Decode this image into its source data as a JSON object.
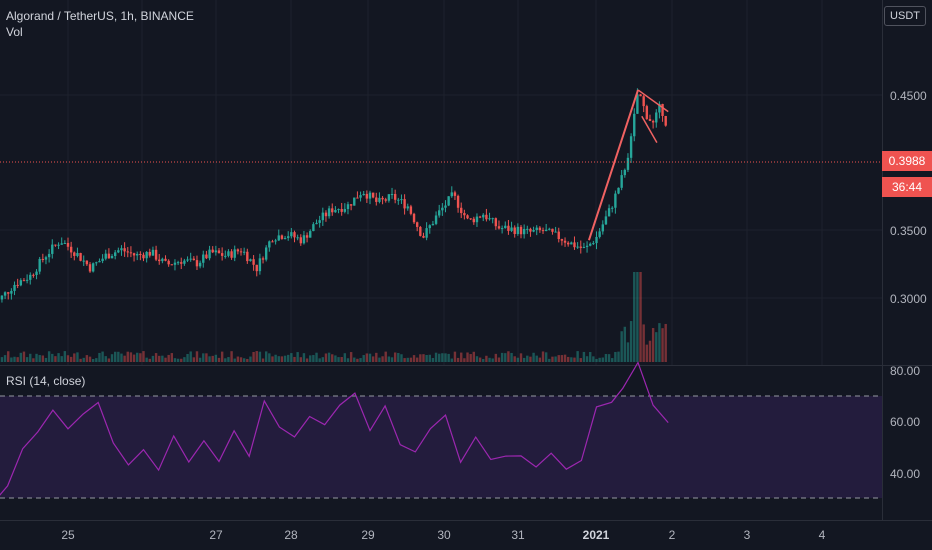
{
  "header": {
    "symbol_line": "Algorand / TetherUS, 1h, BINANCE",
    "vol_label": "Vol",
    "currency": "USDT"
  },
  "rsi": {
    "title": "RSI (14, close)",
    "upper_band": 70,
    "lower_band": 30,
    "axis_labels": [
      "80.00",
      "60.00",
      "40.00"
    ]
  },
  "price_badges": {
    "last_price": "0.3988",
    "countdown": "36:44"
  },
  "colors": {
    "background": "#131722",
    "up": "#26a69a",
    "down": "#ef5350",
    "rsi_line": "#9c27b0",
    "rsi_band": "#2a1f47",
    "drawing": "#f06262"
  },
  "chart_data": {
    "type": "candlestick",
    "price_axis": {
      "labels": [
        "0.4500",
        "0.3500",
        "0.3000"
      ],
      "range": [
        0.27,
        0.465
      ]
    },
    "time_axis": {
      "labels": [
        "25",
        "27",
        "28",
        "29",
        "30",
        "31",
        "2021",
        "2",
        "3",
        "4"
      ]
    },
    "close_path": [
      [
        24.0,
        0.285
      ],
      [
        24.3,
        0.3
      ],
      [
        24.5,
        0.305
      ],
      [
        24.7,
        0.318
      ],
      [
        24.9,
        0.328
      ],
      [
        25.1,
        0.32
      ],
      [
        25.3,
        0.31
      ],
      [
        25.5,
        0.318
      ],
      [
        25.7,
        0.322
      ],
      [
        25.9,
        0.318
      ],
      [
        26.1,
        0.32
      ],
      [
        26.3,
        0.312
      ],
      [
        26.5,
        0.315
      ],
      [
        26.7,
        0.313
      ],
      [
        26.9,
        0.32
      ],
      [
        27.1,
        0.318
      ],
      [
        27.3,
        0.322
      ],
      [
        27.5,
        0.31
      ],
      [
        27.7,
        0.33
      ],
      [
        27.9,
        0.332
      ],
      [
        28.1,
        0.328
      ],
      [
        28.3,
        0.34
      ],
      [
        28.5,
        0.348
      ],
      [
        28.7,
        0.35
      ],
      [
        28.9,
        0.36
      ],
      [
        29.1,
        0.352
      ],
      [
        29.3,
        0.356
      ],
      [
        29.5,
        0.35
      ],
      [
        29.7,
        0.33
      ],
      [
        29.9,
        0.345
      ],
      [
        30.1,
        0.357
      ],
      [
        30.3,
        0.34
      ],
      [
        30.5,
        0.345
      ],
      [
        30.7,
        0.336
      ],
      [
        30.9,
        0.335
      ],
      [
        31.1,
        0.333
      ],
      [
        31.3,
        0.334
      ],
      [
        31.5,
        0.33
      ],
      [
        31.7,
        0.325
      ],
      [
        31.85,
        0.322
      ],
      [
        32.0,
        0.33
      ],
      [
        32.2,
        0.35
      ],
      [
        32.35,
        0.37
      ],
      [
        32.45,
        0.39
      ],
      [
        32.55,
        0.425
      ],
      [
        32.65,
        0.41
      ],
      [
        32.75,
        0.403
      ],
      [
        32.85,
        0.415
      ],
      [
        32.95,
        0.399
      ]
    ],
    "rsi_path": [
      [
        24.0,
        27
      ],
      [
        24.2,
        35
      ],
      [
        24.4,
        48
      ],
      [
        24.6,
        55
      ],
      [
        24.8,
        65
      ],
      [
        25.0,
        56
      ],
      [
        25.2,
        62
      ],
      [
        25.4,
        66
      ],
      [
        25.6,
        50
      ],
      [
        25.8,
        44
      ],
      [
        26.0,
        48
      ],
      [
        26.2,
        40
      ],
      [
        26.4,
        55
      ],
      [
        26.6,
        45
      ],
      [
        26.8,
        52
      ],
      [
        27.0,
        44
      ],
      [
        27.2,
        56
      ],
      [
        27.4,
        45
      ],
      [
        27.6,
        68
      ],
      [
        27.8,
        58
      ],
      [
        28.0,
        55
      ],
      [
        28.2,
        62
      ],
      [
        28.4,
        60
      ],
      [
        28.6,
        66
      ],
      [
        28.8,
        70
      ],
      [
        29.0,
        55
      ],
      [
        29.2,
        65
      ],
      [
        29.4,
        52
      ],
      [
        29.6,
        48
      ],
      [
        29.8,
        58
      ],
      [
        30.0,
        62
      ],
      [
        30.2,
        45
      ],
      [
        30.4,
        55
      ],
      [
        30.6,
        44
      ],
      [
        30.8,
        47
      ],
      [
        31.0,
        45
      ],
      [
        31.2,
        43
      ],
      [
        31.4,
        48
      ],
      [
        31.6,
        42
      ],
      [
        31.8,
        46
      ],
      [
        32.0,
        65
      ],
      [
        32.2,
        68
      ],
      [
        32.35,
        72
      ],
      [
        32.55,
        82
      ],
      [
        32.75,
        66
      ],
      [
        32.95,
        58
      ]
    ],
    "annotations": {
      "trend_line": [
        [
          31.9,
          0.328
        ],
        [
          32.55,
          0.425
        ]
      ],
      "flag_channel": [
        [
          [
            32.55,
            0.425
          ],
          [
            32.95,
            0.411
          ]
        ],
        [
          [
            32.6,
            0.408
          ],
          [
            32.8,
            0.391
          ]
        ]
      ]
    }
  }
}
